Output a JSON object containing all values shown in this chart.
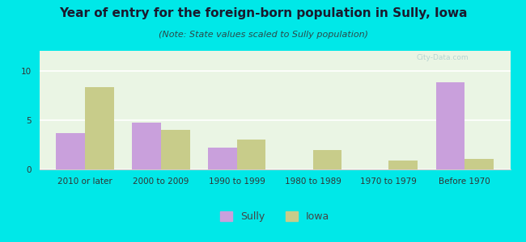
{
  "title": "Year of entry for the foreign-born population in Sully, Iowa",
  "subtitle": "(Note: State values scaled to Sully population)",
  "categories": [
    "2010 or later",
    "2000 to 2009",
    "1990 to 1999",
    "1980 to 1989",
    "1970 to 1979",
    "Before 1970"
  ],
  "sully_values": [
    3.7,
    4.7,
    2.2,
    0,
    0,
    8.8
  ],
  "iowa_values": [
    8.3,
    4.0,
    3.0,
    2.0,
    0.9,
    1.1
  ],
  "sully_color": "#c9a0dc",
  "iowa_color": "#c8cc8a",
  "background_color": "#00e8e8",
  "ylim": [
    0,
    12
  ],
  "yticks": [
    0,
    5,
    10
  ],
  "bar_width": 0.38,
  "legend_labels": [
    "Sully",
    "Iowa"
  ],
  "title_fontsize": 11,
  "subtitle_fontsize": 8,
  "tick_fontsize": 7.5,
  "legend_fontsize": 9,
  "title_color": "#1a1a2e",
  "subtitle_color": "#2a4a4a"
}
